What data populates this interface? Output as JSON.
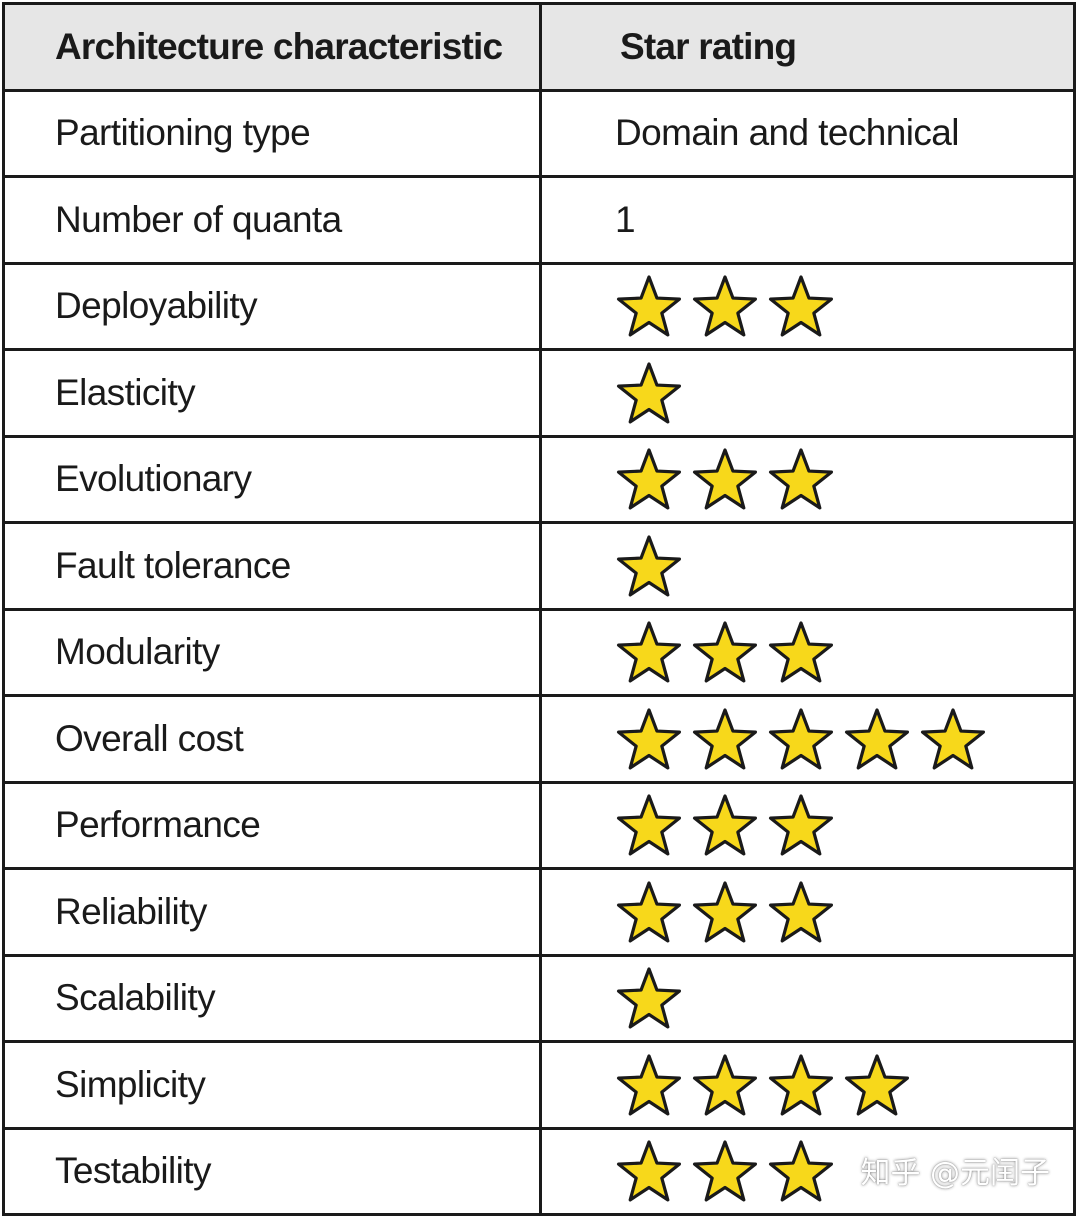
{
  "header": {
    "col1": "Architecture characteristic",
    "col2": "Star rating"
  },
  "star_color": "#f7d81b",
  "rows": [
    {
      "name": "Partitioning type",
      "text": "Domain and technical"
    },
    {
      "name": "Number of quanta",
      "text": "1"
    },
    {
      "name": "Deployability",
      "stars": 3
    },
    {
      "name": "Elasticity",
      "stars": 1
    },
    {
      "name": "Evolutionary",
      "stars": 3
    },
    {
      "name": "Fault tolerance",
      "stars": 1
    },
    {
      "name": "Modularity",
      "stars": 3
    },
    {
      "name": "Overall cost",
      "stars": 5
    },
    {
      "name": "Performance",
      "stars": 3
    },
    {
      "name": "Reliability",
      "stars": 3
    },
    {
      "name": "Scalability",
      "stars": 1
    },
    {
      "name": "Simplicity",
      "stars": 4
    },
    {
      "name": "Testability",
      "stars": 3
    }
  ],
  "watermark": "知乎 @元闰子"
}
